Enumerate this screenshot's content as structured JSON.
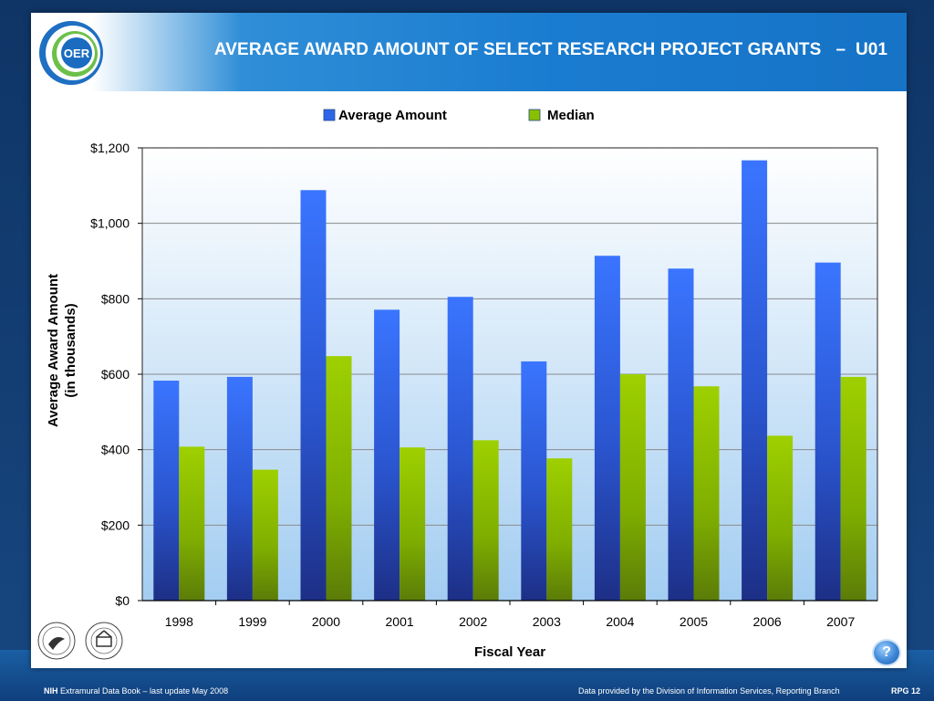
{
  "slide": {
    "title": "AVERAGE AWARD AMOUNT OF SELECT RESEARCH PROJECT GRANTS   –  U01",
    "logo_text": "OER",
    "logo_icon": "oer-logo-icon",
    "seal_icons": [
      "hhs-seal-icon",
      "nih-seal-icon"
    ],
    "help_icon": "question-icon",
    "help_label": "?"
  },
  "footer": {
    "nih": "NIH",
    "left_text": "Extramural Data Book – last update May 2008",
    "right_text": "Data provided by the Division of Information Services, Reporting Branch",
    "page": "RPG 12"
  },
  "chart_data": {
    "type": "bar",
    "xlabel": "Fiscal Year",
    "ylabel_lines": [
      "Average Award Amount",
      "(in thousands)"
    ],
    "categories": [
      "1998",
      "1999",
      "2000",
      "2001",
      "2002",
      "2003",
      "2004",
      "2005",
      "2006",
      "2007"
    ],
    "series": [
      {
        "name": "Average Amount",
        "color": "#2f66e8",
        "values": [
          583,
          593,
          1088,
          771,
          805,
          634,
          914,
          880,
          1167,
          896
        ]
      },
      {
        "name": "Median",
        "color": "#88c000",
        "values": [
          408,
          347,
          648,
          406,
          425,
          377,
          600,
          568,
          437,
          593
        ]
      }
    ],
    "ylim": [
      0,
      1200
    ],
    "yticks": [
      0,
      200,
      400,
      600,
      800,
      1000,
      1200
    ],
    "ytick_labels": [
      "$0",
      "$200",
      "$400",
      "$600",
      "$800",
      "$1,000",
      "$1,200"
    ],
    "grid": true,
    "legend_position": "top-center"
  }
}
